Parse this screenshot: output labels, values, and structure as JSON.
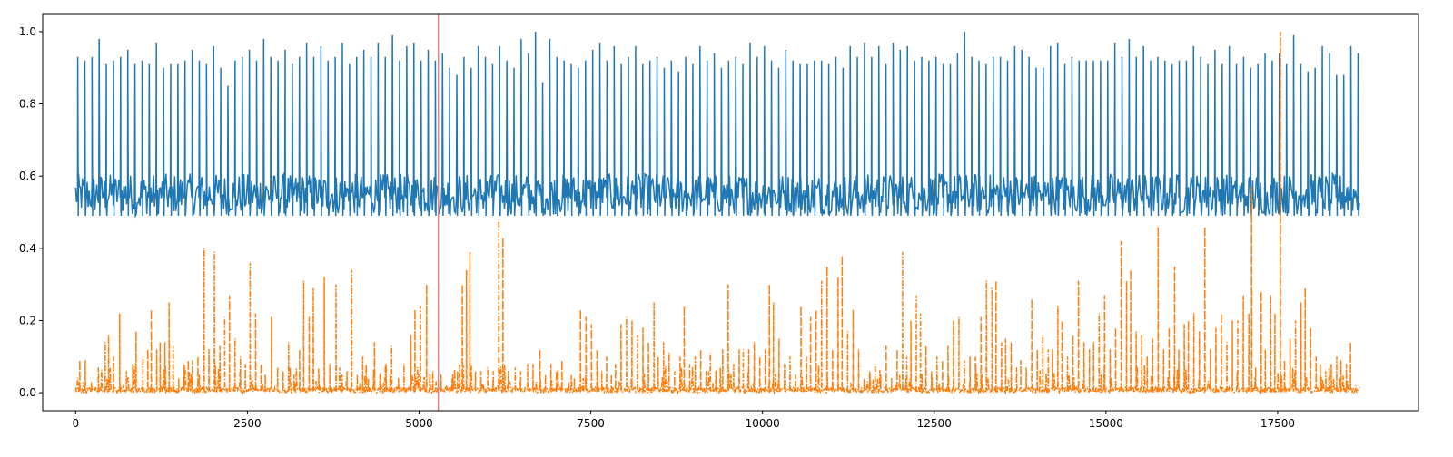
{
  "chart_data": {
    "type": "line",
    "title": "",
    "xlabel": "",
    "ylabel": "",
    "xlim": [
      -480,
      19550
    ],
    "ylim": [
      -0.05,
      1.05
    ],
    "grid": false,
    "legend": "none",
    "x_ticks": [
      {
        "value": 0,
        "label": "0"
      },
      {
        "value": 2500,
        "label": "2500"
      },
      {
        "value": 5000,
        "label": "5000"
      },
      {
        "value": 7500,
        "label": "7500"
      },
      {
        "value": 10000,
        "label": "10000"
      },
      {
        "value": 12500,
        "label": "12500"
      },
      {
        "value": 15000,
        "label": "15000"
      },
      {
        "value": 17500,
        "label": "17500"
      }
    ],
    "y_ticks": [
      {
        "value": 0.0,
        "label": "0.0"
      },
      {
        "value": 0.2,
        "label": "0.2"
      },
      {
        "value": 0.4,
        "label": "0.4"
      },
      {
        "value": 0.6,
        "label": "0.6"
      },
      {
        "value": 0.8,
        "label": "0.8"
      },
      {
        "value": 1.0,
        "label": "1.0"
      }
    ],
    "vertical_line": {
      "x": 5280,
      "color": "#f08080"
    },
    "series": [
      {
        "color": "#1f77b4",
        "style": "solid",
        "x_range": [
          0,
          18700
        ],
        "baseline": 0.55,
        "baseline_low": 0.48,
        "baseline_high": 0.6,
        "peak_values": [
          0.93,
          0.92,
          0.93,
          0.98,
          0.91,
          0.92,
          0.93,
          0.95,
          0.91,
          0.92,
          0.91,
          0.97,
          0.9,
          0.91,
          0.91,
          0.92,
          0.95,
          0.92,
          0.91,
          0.96,
          0.9,
          0.85,
          0.92,
          0.93,
          0.95,
          0.92,
          0.98,
          0.93,
          0.92,
          0.95,
          0.91,
          0.93,
          0.97,
          0.93,
          0.96,
          0.92,
          0.93,
          0.97,
          0.91,
          0.93,
          0.95,
          0.93,
          0.97,
          0.93,
          0.99,
          0.92,
          0.96,
          0.97,
          0.92,
          0.95,
          0.92,
          0.94,
          0.9,
          0.88,
          0.93,
          0.9,
          0.96,
          0.93,
          0.91,
          0.96,
          0.92,
          0.9,
          0.98,
          0.94,
          1.0,
          0.86,
          0.98,
          0.93,
          0.92,
          0.91,
          0.9,
          0.92,
          0.95,
          0.97,
          0.92,
          0.96,
          0.91,
          0.93,
          0.96,
          0.91,
          0.92,
          0.93,
          0.9,
          0.92,
          0.89,
          0.93,
          0.91,
          0.96,
          0.92,
          0.94,
          0.9,
          0.92,
          0.93,
          0.91,
          0.97,
          0.93,
          0.96,
          0.92,
          0.9,
          0.95,
          0.92,
          0.91,
          0.91,
          0.92,
          0.92,
          0.91,
          0.93,
          0.9,
          0.96,
          0.93,
          0.97,
          0.93,
          0.96,
          0.91,
          0.97,
          0.95,
          0.96,
          0.92,
          0.93,
          0.92,
          0.93,
          0.91,
          0.91,
          0.94,
          1.0,
          0.93,
          0.92,
          0.91,
          0.93,
          0.93,
          0.92,
          0.96,
          0.95,
          0.93,
          0.9,
          0.9,
          0.96,
          0.97,
          0.91,
          0.93,
          0.92,
          0.92,
          0.92,
          0.92,
          0.92,
          0.97,
          0.93,
          0.98,
          0.93,
          0.96,
          0.92,
          0.93,
          0.92,
          0.91,
          0.92,
          0.92,
          0.96,
          0.93,
          0.91,
          0.95,
          0.91,
          0.96,
          0.91,
          0.93,
          0.9,
          0.91,
          0.94,
          0.92,
          0.94,
          0.91,
          0.99,
          0.91,
          0.89,
          0.9,
          0.96,
          0.94,
          0.88,
          0.88,
          0.96,
          0.94
        ]
      },
      {
        "color": "#ff7f0e",
        "style": "dashdot",
        "x_range": [
          0,
          18700
        ],
        "baseline": 0.005,
        "spikes": [
          [
            60,
            0.09
          ],
          [
            140,
            0.09
          ],
          [
            230,
            0.03
          ],
          [
            330,
            0.07
          ],
          [
            430,
            0.14
          ],
          [
            480,
            0.16
          ],
          [
            550,
            0.1
          ],
          [
            640,
            0.22
          ],
          [
            740,
            0.06
          ],
          [
            830,
            0.08
          ],
          [
            880,
            0.17
          ],
          [
            980,
            0.1
          ],
          [
            1050,
            0.12
          ],
          [
            1100,
            0.23
          ],
          [
            1180,
            0.12
          ],
          [
            1230,
            0.14
          ],
          [
            1300,
            0.14
          ],
          [
            1360,
            0.25
          ],
          [
            1420,
            0.13
          ],
          [
            1500,
            0.04
          ],
          [
            1580,
            0.08
          ],
          [
            1640,
            0.09
          ],
          [
            1700,
            0.09
          ],
          [
            1780,
            0.1
          ],
          [
            1870,
            0.4
          ],
          [
            1940,
            0.12
          ],
          [
            2020,
            0.39
          ],
          [
            2100,
            0.13
          ],
          [
            2170,
            0.21
          ],
          [
            2240,
            0.27
          ],
          [
            2320,
            0.15
          ],
          [
            2400,
            0.1
          ],
          [
            2470,
            0.08
          ],
          [
            2540,
            0.36
          ],
          [
            2620,
            0.22
          ],
          [
            2700,
            0.08
          ],
          [
            2760,
            0.05
          ],
          [
            2850,
            0.21
          ],
          [
            2940,
            0.07
          ],
          [
            3020,
            0.06
          ],
          [
            3100,
            0.14
          ],
          [
            3180,
            0.05
          ],
          [
            3260,
            0.12
          ],
          [
            3320,
            0.31
          ],
          [
            3400,
            0.21
          ],
          [
            3460,
            0.29
          ],
          [
            3540,
            0.05
          ],
          [
            3620,
            0.32
          ],
          [
            3700,
            0.08
          ],
          [
            3790,
            0.3
          ],
          [
            3880,
            0.05
          ],
          [
            3950,
            0.06
          ],
          [
            4020,
            0.34
          ],
          [
            4100,
            0.05
          ],
          [
            4180,
            0.1
          ],
          [
            4260,
            0.04
          ],
          [
            4350,
            0.14
          ],
          [
            4430,
            0.05
          ],
          [
            4520,
            0.08
          ],
          [
            4600,
            0.13
          ],
          [
            4700,
            0.04
          ],
          [
            4780,
            0.08
          ],
          [
            4880,
            0.16
          ],
          [
            4940,
            0.23
          ],
          [
            5020,
            0.24
          ],
          [
            5110,
            0.3
          ],
          [
            5200,
            0.06
          ],
          [
            5320,
            0.05
          ],
          [
            5400,
            0.02
          ],
          [
            5480,
            0.04
          ],
          [
            5560,
            0.06
          ],
          [
            5630,
            0.3
          ],
          [
            5690,
            0.34
          ],
          [
            5740,
            0.39
          ],
          [
            5820,
            0.05
          ],
          [
            5900,
            0.06
          ],
          [
            6000,
            0.07
          ],
          [
            6080,
            0.06
          ],
          [
            6160,
            0.48
          ],
          [
            6220,
            0.43
          ],
          [
            6300,
            0.06
          ],
          [
            6400,
            0.07
          ],
          [
            6480,
            0.06
          ],
          [
            6580,
            0.08
          ],
          [
            6660,
            0.08
          ],
          [
            6760,
            0.12
          ],
          [
            6840,
            0.05
          ],
          [
            6920,
            0.08
          ],
          [
            7000,
            0.06
          ],
          [
            7080,
            0.09
          ],
          [
            7180,
            0.03
          ],
          [
            7260,
            0.04
          ],
          [
            7350,
            0.23
          ],
          [
            7430,
            0.21
          ],
          [
            7510,
            0.19
          ],
          [
            7590,
            0.12
          ],
          [
            7660,
            0.06
          ],
          [
            7730,
            0.1
          ],
          [
            7800,
            0.05
          ],
          [
            7860,
            0.08
          ],
          [
            7940,
            0.19
          ],
          [
            8020,
            0.21
          ],
          [
            8100,
            0.2
          ],
          [
            8180,
            0.16
          ],
          [
            8260,
            0.18
          ],
          [
            8340,
            0.14
          ],
          [
            8420,
            0.25
          ],
          [
            8480,
            0.1
          ],
          [
            8560,
            0.14
          ],
          [
            8640,
            0.11
          ],
          [
            8720,
            0.06
          ],
          [
            8800,
            0.1
          ],
          [
            8860,
            0.24
          ],
          [
            8940,
            0.08
          ],
          [
            9020,
            0.1
          ],
          [
            9100,
            0.12
          ],
          [
            9180,
            0.06
          ],
          [
            9240,
            0.11
          ],
          [
            9320,
            0.06
          ],
          [
            9420,
            0.12
          ],
          [
            9500,
            0.3
          ],
          [
            9580,
            0.08
          ],
          [
            9660,
            0.12
          ],
          [
            9720,
            0.12
          ],
          [
            9800,
            0.12
          ],
          [
            9880,
            0.14
          ],
          [
            9960,
            0.1
          ],
          [
            10040,
            0.12
          ],
          [
            10100,
            0.3
          ],
          [
            10160,
            0.25
          ],
          [
            10240,
            0.15
          ],
          [
            10320,
            0.08
          ],
          [
            10400,
            0.1
          ],
          [
            10480,
            0.05
          ],
          [
            10560,
            0.24
          ],
          [
            10640,
            0.1
          ],
          [
            10700,
            0.21
          ],
          [
            10780,
            0.23
          ],
          [
            10860,
            0.31
          ],
          [
            10940,
            0.35
          ],
          [
            11020,
            0.12
          ],
          [
            11100,
            0.32
          ],
          [
            11160,
            0.38
          ],
          [
            11240,
            0.17
          ],
          [
            11320,
            0.23
          ],
          [
            11400,
            0.12
          ],
          [
            11480,
            0.04
          ],
          [
            11560,
            0.06
          ],
          [
            11640,
            0.08
          ],
          [
            11720,
            0.05
          ],
          [
            11800,
            0.13
          ],
          [
            11880,
            0.04
          ],
          [
            11960,
            0.12
          ],
          [
            12040,
            0.39
          ],
          [
            12100,
            0.1
          ],
          [
            12160,
            0.2
          ],
          [
            12240,
            0.27
          ],
          [
            12300,
            0.22
          ],
          [
            12380,
            0.13
          ],
          [
            12460,
            0.06
          ],
          [
            12540,
            0.1
          ],
          [
            12620,
            0.09
          ],
          [
            12700,
            0.13
          ],
          [
            12780,
            0.2
          ],
          [
            12860,
            0.21
          ],
          [
            12940,
            0.09
          ],
          [
            13020,
            0.1
          ],
          [
            13100,
            0.1
          ],
          [
            13180,
            0.21
          ],
          [
            13260,
            0.31
          ],
          [
            13340,
            0.29
          ],
          [
            13400,
            0.31
          ],
          [
            13480,
            0.14
          ],
          [
            13540,
            0.15
          ],
          [
            13620,
            0.14
          ],
          [
            13700,
            0.07
          ],
          [
            13760,
            0.09
          ],
          [
            13840,
            0.07
          ],
          [
            13920,
            0.26
          ],
          [
            14000,
            0.12
          ],
          [
            14080,
            0.16
          ],
          [
            14160,
            0.12
          ],
          [
            14220,
            0.12
          ],
          [
            14300,
            0.24
          ],
          [
            14360,
            0.2
          ],
          [
            14440,
            0.1
          ],
          [
            14520,
            0.16
          ],
          [
            14600,
            0.31
          ],
          [
            14680,
            0.14
          ],
          [
            14760,
            0.12
          ],
          [
            14820,
            0.14
          ],
          [
            14900,
            0.22
          ],
          [
            14980,
            0.27
          ],
          [
            15060,
            0.12
          ],
          [
            15140,
            0.18
          ],
          [
            15220,
            0.42
          ],
          [
            15300,
            0.31
          ],
          [
            15360,
            0.34
          ],
          [
            15440,
            0.17
          ],
          [
            15520,
            0.16
          ],
          [
            15600,
            0.1
          ],
          [
            15680,
            0.15
          ],
          [
            15760,
            0.46
          ],
          [
            15840,
            0.12
          ],
          [
            15920,
            0.18
          ],
          [
            16000,
            0.35
          ],
          [
            16060,
            0.12
          ],
          [
            16140,
            0.19
          ],
          [
            16200,
            0.2
          ],
          [
            16280,
            0.22
          ],
          [
            16360,
            0.17
          ],
          [
            16440,
            0.46
          ],
          [
            16520,
            0.12
          ],
          [
            16600,
            0.18
          ],
          [
            16680,
            0.22
          ],
          [
            16760,
            0.14
          ],
          [
            16840,
            0.2
          ],
          [
            16920,
            0.2
          ],
          [
            17000,
            0.27
          ],
          [
            17080,
            0.22
          ],
          [
            17120,
            0.57
          ],
          [
            17180,
            0.07
          ],
          [
            17260,
            0.28
          ],
          [
            17320,
            0.12
          ],
          [
            17400,
            0.27
          ],
          [
            17460,
            0.22
          ],
          [
            17540,
            1.0
          ],
          [
            17600,
            0.09
          ],
          [
            17680,
            0.15
          ],
          [
            17760,
            0.2
          ],
          [
            17840,
            0.25
          ],
          [
            17900,
            0.29
          ],
          [
            17980,
            0.18
          ],
          [
            18060,
            0.1
          ],
          [
            18120,
            0.08
          ],
          [
            18200,
            0.06
          ],
          [
            18280,
            0.08
          ],
          [
            18360,
            0.1
          ],
          [
            18420,
            0.09
          ],
          [
            18500,
            0.08
          ],
          [
            18560,
            0.14
          ],
          [
            18640,
            0.02
          ]
        ]
      }
    ]
  }
}
